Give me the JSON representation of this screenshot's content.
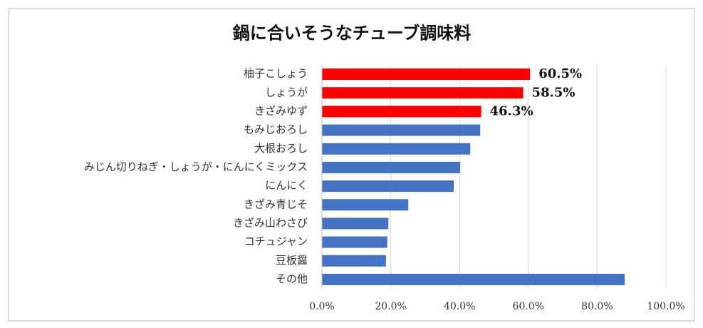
{
  "chart_data": {
    "type": "barh",
    "title": "鍋に合いそうなチューブ調味料",
    "categories": [
      "柚子こしょう",
      "しょうが",
      "きざみゆず",
      "もみじおろし",
      "大根おろし",
      "みじん切りねぎ・しょうが・にんにくミックス",
      "にんにく",
      "きざみ青じそ",
      "きざみ山わさび",
      "コチュジャン",
      "豆板醤",
      "その他"
    ],
    "values": [
      60.5,
      58.5,
      46.3,
      46.0,
      43.1,
      40.2,
      38.3,
      25.1,
      19.3,
      19.0,
      18.6,
      88.0
    ],
    "value_labels": [
      "60.5%",
      "58.5%",
      "46.3%",
      null,
      null,
      null,
      null,
      null,
      null,
      null,
      null,
      null
    ],
    "colors": [
      "#ff0000",
      "#ff0000",
      "#ff0000",
      "#4472c4",
      "#4472c4",
      "#4472c4",
      "#4472c4",
      "#4472c4",
      "#4472c4",
      "#4472c4",
      "#4472c4",
      "#4472c4"
    ],
    "xlim": [
      0,
      100
    ],
    "xticks": [
      {
        "value": 0,
        "label": "0.0%"
      },
      {
        "value": 20,
        "label": "20.0%"
      },
      {
        "value": 40,
        "label": "40.0%"
      },
      {
        "value": 60,
        "label": "60.0%"
      },
      {
        "value": 80,
        "label": "80.0%"
      },
      {
        "value": 100,
        "label": "100.0%"
      }
    ],
    "grid": true
  }
}
